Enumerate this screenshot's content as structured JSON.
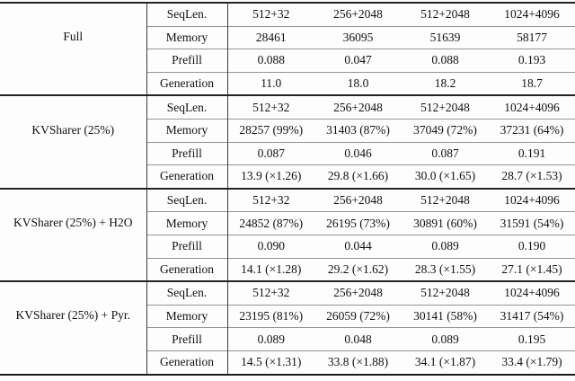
{
  "table": {
    "description": "Benchmark table comparing Full KV cache vs KVSharer variants",
    "sections": [
      {
        "name": "Full",
        "rows": [
          {
            "label": "SeqLen.",
            "values": [
              "512+32",
              "256+2048",
              "512+2048",
              "1024+4096"
            ]
          },
          {
            "label": "Memory",
            "values": [
              "28461",
              "36095",
              "51639",
              "58177"
            ]
          },
          {
            "label": "Prefill",
            "values": [
              "0.088",
              "0.047",
              "0.088",
              "0.193"
            ]
          },
          {
            "label": "Generation",
            "values": [
              "11.0",
              "18.0",
              "18.2",
              "18.7"
            ]
          }
        ]
      },
      {
        "name": "KVSharer (25%)",
        "rows": [
          {
            "label": "SeqLen.",
            "values": [
              "512+32",
              "256+2048",
              "512+2048",
              "1024+4096"
            ]
          },
          {
            "label": "Memory",
            "values": [
              "28257 (99%)",
              "31403 (87%)",
              "37049 (72%)",
              "37231 (64%)"
            ]
          },
          {
            "label": "Prefill",
            "values": [
              "0.087",
              "0.046",
              "0.087",
              "0.191"
            ]
          },
          {
            "label": "Generation",
            "values": [
              "13.9 (×1.26)",
              "29.8 (×1.66)",
              "30.0 (×1.65)",
              "28.7 (×1.53)"
            ]
          }
        ]
      },
      {
        "name": "KVSharer (25%) + H2O",
        "rows": [
          {
            "label": "SeqLen.",
            "values": [
              "512+32",
              "256+2048",
              "512+2048",
              "1024+4096"
            ]
          },
          {
            "label": "Memory",
            "values": [
              "24852 (87%)",
              "26195 (73%)",
              "30891 (60%)",
              "31591 (54%)"
            ]
          },
          {
            "label": "Prefill",
            "values": [
              "0.090",
              "0.044",
              "0.089",
              "0.190"
            ]
          },
          {
            "label": "Generation",
            "values": [
              "14.1 (×1.28)",
              "29.2 (×1.62)",
              "28.3 (×1.55)",
              "27.1 (×1.45)"
            ]
          }
        ]
      },
      {
        "name": "KVSharer (25%) + Pyr.",
        "rows": [
          {
            "label": "SeqLen.",
            "values": [
              "512+32",
              "256+2048",
              "512+2048",
              "1024+4096"
            ]
          },
          {
            "label": "Memory",
            "values": [
              "23195 (81%)",
              "26059 (72%)",
              "30141 (58%)",
              "31417 (54%)"
            ]
          },
          {
            "label": "Prefill",
            "values": [
              "0.089",
              "0.048",
              "0.089",
              "0.195"
            ]
          },
          {
            "label": "Generation",
            "values": [
              "14.5 (×1.31)",
              "33.8 (×1.88)",
              "34.1 (×1.87)",
              "33.4 (×1.79)"
            ]
          }
        ]
      }
    ]
  }
}
